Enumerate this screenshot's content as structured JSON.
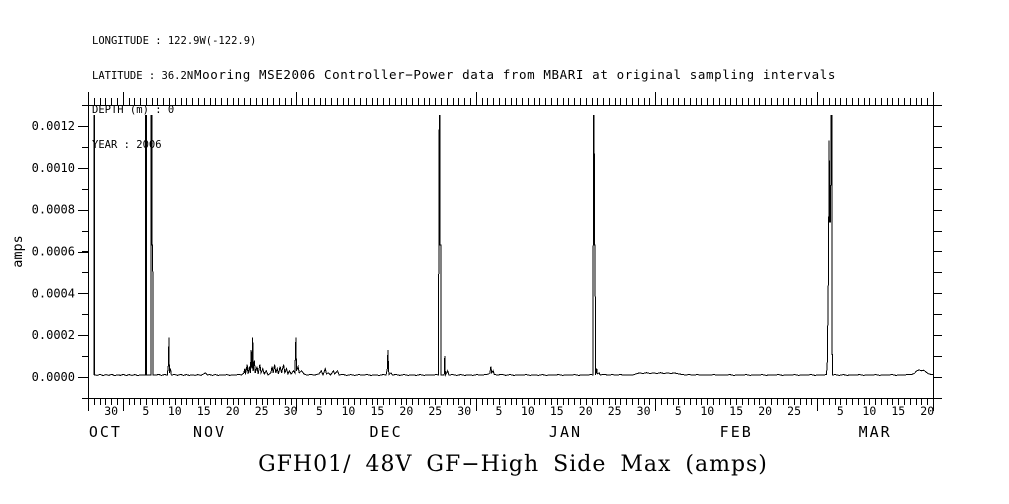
{
  "header": {
    "lines": [
      "LONGITUDE : 122.9W(-122.9)",
      "LATITUDE : 36.2N",
      "DEPTH (m) : 0",
      "YEAR : 2006"
    ]
  },
  "titles": {
    "top": "Mooring MSE2006 Controller−Power data from MBARI at original sampling intervals",
    "bottom": "GFH01/ 48V GF−High Side Max (amps)"
  },
  "chart_data": {
    "type": "line",
    "title": "Mooring MSE2006 Controller−Power data from MBARI at original sampling intervals",
    "subtitle": "GFH01/ 48V GF−High Side Max (amps)",
    "ylabel": "amps",
    "x_unit": "days, axis spans late Oct 2006 through late Mar 2007",
    "x_range": [
      0,
      146
    ],
    "y_range": [
      -0.0001,
      0.0013
    ],
    "grid": false,
    "legend": "none",
    "line_color": "#000000",
    "y_ticks": [
      {
        "v": 0.0,
        "t": "0.0000"
      },
      {
        "v": 0.0002,
        "t": "0.0002"
      },
      {
        "v": 0.0004,
        "t": "0.0004"
      },
      {
        "v": 0.0006,
        "t": "0.0006"
      },
      {
        "v": 0.0008,
        "t": "0.0008"
      },
      {
        "v": 0.001,
        "t": "0.0010"
      },
      {
        "v": 0.0012,
        "t": "0.0012"
      }
    ],
    "y_minor_step": 0.0001,
    "x_minor_step_days": 1,
    "month_tick_days": [
      6,
      36,
      67,
      98,
      126
    ],
    "day_labels": [
      {
        "d": 4,
        "t": "30"
      },
      {
        "d": 10,
        "t": "5"
      },
      {
        "d": 15,
        "t": "10"
      },
      {
        "d": 20,
        "t": "15"
      },
      {
        "d": 25,
        "t": "20"
      },
      {
        "d": 30,
        "t": "25"
      },
      {
        "d": 35,
        "t": "30"
      },
      {
        "d": 40,
        "t": "5"
      },
      {
        "d": 45,
        "t": "10"
      },
      {
        "d": 50,
        "t": "15"
      },
      {
        "d": 55,
        "t": "20"
      },
      {
        "d": 60,
        "t": "25"
      },
      {
        "d": 65,
        "t": "30"
      },
      {
        "d": 71,
        "t": "5"
      },
      {
        "d": 76,
        "t": "10"
      },
      {
        "d": 81,
        "t": "15"
      },
      {
        "d": 86,
        "t": "20"
      },
      {
        "d": 91,
        "t": "25"
      },
      {
        "d": 96,
        "t": "30"
      },
      {
        "d": 102,
        "t": "5"
      },
      {
        "d": 107,
        "t": "10"
      },
      {
        "d": 112,
        "t": "15"
      },
      {
        "d": 117,
        "t": "20"
      },
      {
        "d": 122,
        "t": "25"
      },
      {
        "d": 130,
        "t": "5"
      },
      {
        "d": 135,
        "t": "10"
      },
      {
        "d": 140,
        "t": "15"
      },
      {
        "d": 145,
        "t": "20"
      }
    ],
    "month_labels": [
      {
        "d": 3,
        "t": "OCT"
      },
      {
        "d": 21,
        "t": "NOV"
      },
      {
        "d": 51.5,
        "t": "DEC"
      },
      {
        "d": 82.5,
        "t": "JAN"
      },
      {
        "d": 112,
        "t": "FEB"
      },
      {
        "d": 136,
        "t": "MAR"
      }
    ],
    "points": [
      [
        1.0,
        1e-05
      ],
      [
        1.02,
        0.00125
      ],
      [
        1.12,
        0.00125
      ],
      [
        1.15,
        1e-05
      ],
      [
        1.6,
        8e-06
      ],
      [
        2.1,
        1.3e-05
      ],
      [
        2.6,
        7e-06
      ],
      [
        3.1,
        1.2e-05
      ],
      [
        3.6,
        8e-06
      ],
      [
        4.1,
        1.3e-05
      ],
      [
        4.6,
        7e-06
      ],
      [
        5.1,
        1.1e-05
      ],
      [
        5.6,
        8e-06
      ],
      [
        6.1,
        1.3e-05
      ],
      [
        6.6,
        7e-06
      ],
      [
        7.1,
        1.2e-05
      ],
      [
        7.6,
        8e-06
      ],
      [
        8.1,
        1.2e-05
      ],
      [
        8.6,
        7e-06
      ],
      [
        9.1,
        1.1e-05
      ],
      [
        9.6,
        9e-06
      ],
      [
        9.93,
        1e-05
      ],
      [
        9.97,
        0.00125
      ],
      [
        10.08,
        0.00125
      ],
      [
        10.12,
        1e-05
      ],
      [
        10.88,
        1e-05
      ],
      [
        10.92,
        0.00125
      ],
      [
        11.02,
        0.00125
      ],
      [
        11.06,
        0.00063
      ],
      [
        11.18,
        0.00063
      ],
      [
        11.22,
        1e-05
      ],
      [
        11.7,
        9e-06
      ],
      [
        12.2,
        1.3e-05
      ],
      [
        12.7,
        8e-06
      ],
      [
        13.2,
        1.2e-05
      ],
      [
        13.7,
        1e-05
      ],
      [
        13.9,
        6e-05
      ],
      [
        13.98,
        0.00019
      ],
      [
        14.06,
        2e-05
      ],
      [
        14.25,
        4e-05
      ],
      [
        14.4,
        1e-05
      ],
      [
        15,
        1.2e-05
      ],
      [
        15.5,
        8e-06
      ],
      [
        16,
        1.3e-05
      ],
      [
        16.5,
        8e-06
      ],
      [
        17,
        1.2e-05
      ],
      [
        17.5,
        8e-06
      ],
      [
        18,
        1.1e-05
      ],
      [
        18.5,
        8e-06
      ],
      [
        19,
        1.2e-05
      ],
      [
        19.5,
        8e-06
      ],
      [
        20,
        1.5e-05
      ],
      [
        20.3,
        2e-05
      ],
      [
        20.6,
        1e-05
      ],
      [
        21,
        1.2e-05
      ],
      [
        21.5,
        8e-06
      ],
      [
        22,
        1.2e-05
      ],
      [
        22.5,
        8e-06
      ],
      [
        23,
        1.1e-05
      ],
      [
        23.5,
        9e-06
      ],
      [
        24,
        1.2e-05
      ],
      [
        24.5,
        8e-06
      ],
      [
        25,
        1.1e-05
      ],
      [
        25.5,
        9e-06
      ],
      [
        26,
        1.3e-05
      ],
      [
        26.5,
        1e-05
      ],
      [
        26.9,
        1.8e-05
      ],
      [
        27.1,
        4e-05
      ],
      [
        27.2,
        1.2e-05
      ],
      [
        27.5,
        6e-05
      ],
      [
        27.65,
        1.5e-05
      ],
      [
        27.9,
        5e-05
      ],
      [
        28.05,
        2e-05
      ],
      [
        28.2,
        0.00013
      ],
      [
        28.3,
        4e-05
      ],
      [
        28.45,
        0.00019
      ],
      [
        28.55,
        3e-05
      ],
      [
        28.75,
        8e-05
      ],
      [
        28.9,
        2e-05
      ],
      [
        29.2,
        5e-05
      ],
      [
        29.4,
        1.5e-05
      ],
      [
        29.7,
        6e-05
      ],
      [
        29.9,
        2e-05
      ],
      [
        30.2,
        4e-05
      ],
      [
        30.45,
        1.5e-05
      ],
      [
        30.8,
        3e-05
      ],
      [
        31.1,
        1e-05
      ],
      [
        31.6,
        2e-05
      ],
      [
        31.8,
        5e-05
      ],
      [
        32.0,
        2e-05
      ],
      [
        32.25,
        6e-05
      ],
      [
        32.45,
        2e-05
      ],
      [
        32.7,
        4e-05
      ],
      [
        32.9,
        1.5e-05
      ],
      [
        33.2,
        5e-05
      ],
      [
        33.45,
        2e-05
      ],
      [
        33.8,
        6e-05
      ],
      [
        34.0,
        2e-05
      ],
      [
        34.3,
        4e-05
      ],
      [
        34.55,
        1.5e-05
      ],
      [
        34.8,
        3e-05
      ],
      [
        35.1,
        1.5e-05
      ],
      [
        35.5,
        3e-05
      ],
      [
        35.75,
        2e-05
      ],
      [
        35.92,
        0.00019
      ],
      [
        36.02,
        3e-05
      ],
      [
        36.3,
        5e-05
      ],
      [
        36.5,
        2e-05
      ],
      [
        36.9,
        3e-05
      ],
      [
        37.3,
        1.5e-05
      ],
      [
        37.8,
        1e-05
      ],
      [
        38.5,
        1.2e-05
      ],
      [
        39.2,
        1e-05
      ],
      [
        39.9,
        1.5e-05
      ],
      [
        40.3,
        3e-05
      ],
      [
        40.6,
        1e-05
      ],
      [
        41.0,
        4e-05
      ],
      [
        41.2,
        1.5e-05
      ],
      [
        41.5,
        2e-05
      ],
      [
        41.9,
        1e-05
      ],
      [
        42.4,
        3e-05
      ],
      [
        42.6,
        1.5e-05
      ],
      [
        43.1,
        3e-05
      ],
      [
        43.4,
        1e-05
      ],
      [
        44,
        1.3e-05
      ],
      [
        44.7,
        8e-06
      ],
      [
        45.4,
        1.2e-05
      ],
      [
        46.1,
        8e-06
      ],
      [
        46.8,
        1.2e-05
      ],
      [
        47.5,
        9e-06
      ],
      [
        48.2,
        1.2e-05
      ],
      [
        48.9,
        8e-06
      ],
      [
        49.6,
        1.1e-05
      ],
      [
        50.3,
        8e-06
      ],
      [
        51.0,
        1.2e-05
      ],
      [
        51.5,
        1e-05
      ],
      [
        51.72,
        4e-05
      ],
      [
        51.82,
        0.00013
      ],
      [
        51.92,
        4e-05
      ],
      [
        52.0,
        1.2e-05
      ],
      [
        52.35,
        2e-05
      ],
      [
        52.6,
        1e-05
      ],
      [
        53.2,
        1.2e-05
      ],
      [
        53.9,
        8e-06
      ],
      [
        54.6,
        1.2e-05
      ],
      [
        55.3,
        8e-06
      ],
      [
        56,
        1.1e-05
      ],
      [
        56.7,
        8e-06
      ],
      [
        57.4,
        1.2e-05
      ],
      [
        58.1,
        8e-06
      ],
      [
        58.8,
        1.1e-05
      ],
      [
        59.5,
        9e-06
      ],
      [
        60.2,
        1.2e-05
      ],
      [
        60.55,
        1e-05
      ],
      [
        60.62,
        0.00063
      ],
      [
        60.7,
        0.00125
      ],
      [
        60.78,
        0.00125
      ],
      [
        60.82,
        0.00063
      ],
      [
        60.95,
        0.00063
      ],
      [
        61.0,
        1e-05
      ],
      [
        61.55,
        1e-05
      ],
      [
        61.65,
        0.0001
      ],
      [
        61.75,
        1e-05
      ],
      [
        62.15,
        3e-05
      ],
      [
        62.35,
        1e-05
      ],
      [
        63,
        1.2e-05
      ],
      [
        63.7,
        8e-06
      ],
      [
        64.4,
        1.2e-05
      ],
      [
        65.1,
        8e-06
      ],
      [
        65.8,
        1.1e-05
      ],
      [
        66.5,
        8e-06
      ],
      [
        67.2,
        1.2e-05
      ],
      [
        67.9,
        9e-06
      ],
      [
        68.6,
        1.2e-05
      ],
      [
        69.2,
        1.4e-05
      ],
      [
        69.45,
        2e-05
      ],
      [
        69.6,
        5e-05
      ],
      [
        69.75,
        2e-05
      ],
      [
        70.0,
        3e-05
      ],
      [
        70.2,
        1.2e-05
      ],
      [
        70.8,
        1e-05
      ],
      [
        71.5,
        1.3e-05
      ],
      [
        72.2,
        8e-06
      ],
      [
        72.9,
        1.2e-05
      ],
      [
        73.6,
        8e-06
      ],
      [
        74.3,
        1.1e-05
      ],
      [
        75,
        9e-06
      ],
      [
        75.7,
        1.2e-05
      ],
      [
        76.4,
        8e-06
      ],
      [
        77.1,
        1.1e-05
      ],
      [
        77.8,
        8e-06
      ],
      [
        78.5,
        1.2e-05
      ],
      [
        79.2,
        8e-06
      ],
      [
        79.9,
        1.1e-05
      ],
      [
        80.6,
        9e-06
      ],
      [
        81.3,
        1.2e-05
      ],
      [
        82,
        8e-06
      ],
      [
        82.7,
        1.1e-05
      ],
      [
        83.4,
        9e-06
      ],
      [
        84.1,
        1.2e-05
      ],
      [
        84.8,
        8e-06
      ],
      [
        85.5,
        1.1e-05
      ],
      [
        86.2,
        9e-06
      ],
      [
        86.9,
        1.2e-05
      ],
      [
        87.25,
        1e-05
      ],
      [
        87.3,
        0.00063
      ],
      [
        87.38,
        0.00125
      ],
      [
        87.46,
        0.00125
      ],
      [
        87.5,
        0.00063
      ],
      [
        87.62,
        0.00063
      ],
      [
        87.68,
        1e-05
      ],
      [
        87.9,
        4e-05
      ],
      [
        88.0,
        1.5e-05
      ],
      [
        88.3,
        2e-05
      ],
      [
        88.5,
        1e-05
      ],
      [
        89.2,
        1.3e-05
      ],
      [
        89.9,
        9e-06
      ],
      [
        90.6,
        1.2e-05
      ],
      [
        91.3,
        9e-06
      ],
      [
        92,
        1.2e-05
      ],
      [
        92.7,
        9e-06
      ],
      [
        93.4,
        1.1e-05
      ],
      [
        94.1,
        1e-05
      ],
      [
        94.8,
        1.6e-05
      ],
      [
        95.3,
        2e-05
      ],
      [
        95.9,
        1.7e-05
      ],
      [
        96.5,
        2.1e-05
      ],
      [
        97.1,
        1.7e-05
      ],
      [
        97.7,
        2e-05
      ],
      [
        98.3,
        1.7e-05
      ],
      [
        98.9,
        2.1e-05
      ],
      [
        99.5,
        1.7e-05
      ],
      [
        100.1,
        2e-05
      ],
      [
        100.7,
        1.7e-05
      ],
      [
        101.3,
        2e-05
      ],
      [
        101.9,
        1.6e-05
      ],
      [
        102.5,
        1.3e-05
      ],
      [
        103.2,
        1e-05
      ],
      [
        103.9,
        1.2e-05
      ],
      [
        104.6,
        9e-06
      ],
      [
        105.3,
        1.2e-05
      ],
      [
        106,
        9e-06
      ],
      [
        106.7,
        1.1e-05
      ],
      [
        107.4,
        9e-06
      ],
      [
        108.1,
        1.2e-05
      ],
      [
        108.8,
        9e-06
      ],
      [
        109.5,
        1.1e-05
      ],
      [
        110.2,
        9e-06
      ],
      [
        110.9,
        1.2e-05
      ],
      [
        111.6,
        8e-06
      ],
      [
        112.3,
        1.1e-05
      ],
      [
        113,
        9e-06
      ],
      [
        113.7,
        1.2e-05
      ],
      [
        114.4,
        8e-06
      ],
      [
        115.1,
        1.1e-05
      ],
      [
        115.8,
        9e-06
      ],
      [
        116.5,
        1.2e-05
      ],
      [
        117.2,
        8e-06
      ],
      [
        117.9,
        1.1e-05
      ],
      [
        118.6,
        9e-06
      ],
      [
        119.3,
        1.2e-05
      ],
      [
        120,
        8e-06
      ],
      [
        120.7,
        1.1e-05
      ],
      [
        121.4,
        9e-06
      ],
      [
        122.1,
        1.2e-05
      ],
      [
        122.8,
        8e-06
      ],
      [
        123.5,
        1.1e-05
      ],
      [
        124.2,
        9e-06
      ],
      [
        124.9,
        1.2e-05
      ],
      [
        125.6,
        8e-06
      ],
      [
        126.3,
        1.1e-05
      ],
      [
        127.0,
        1e-05
      ],
      [
        127.6,
        1.2e-05
      ],
      [
        127.75,
        8e-05
      ],
      [
        127.85,
        0.00033
      ],
      [
        127.95,
        0.00053
      ],
      [
        128.05,
        0.00113
      ],
      [
        128.15,
        0.00074
      ],
      [
        128.3,
        0.00074
      ],
      [
        128.4,
        0.00125
      ],
      [
        128.52,
        0.00125
      ],
      [
        128.6,
        1e-05
      ],
      [
        129.1,
        1.2e-05
      ],
      [
        129.8,
        8e-06
      ],
      [
        130.5,
        1.2e-05
      ],
      [
        131.2,
        8e-06
      ],
      [
        131.9,
        1.1e-05
      ],
      [
        132.6,
        9e-06
      ],
      [
        133.3,
        1.2e-05
      ],
      [
        134,
        8e-06
      ],
      [
        134.7,
        1.1e-05
      ],
      [
        135.4,
        9e-06
      ],
      [
        136.1,
        1.2e-05
      ],
      [
        136.8,
        8e-06
      ],
      [
        137.5,
        1.1e-05
      ],
      [
        138.2,
        9e-06
      ],
      [
        138.9,
        1.2e-05
      ],
      [
        139.6,
        8e-06
      ],
      [
        140.3,
        1.1e-05
      ],
      [
        141,
        9e-06
      ],
      [
        141.7,
        1.3e-05
      ],
      [
        142.3,
        1.2e-05
      ],
      [
        142.8,
        1.8e-05
      ],
      [
        143.2,
        3e-05
      ],
      [
        143.6,
        3.4e-05
      ],
      [
        144.0,
        3e-05
      ],
      [
        144.4,
        3.3e-05
      ],
      [
        144.8,
        2.4e-05
      ],
      [
        145.2,
        1.6e-05
      ],
      [
        145.6,
        1.3e-05
      ],
      [
        146,
        1.2e-05
      ]
    ]
  }
}
